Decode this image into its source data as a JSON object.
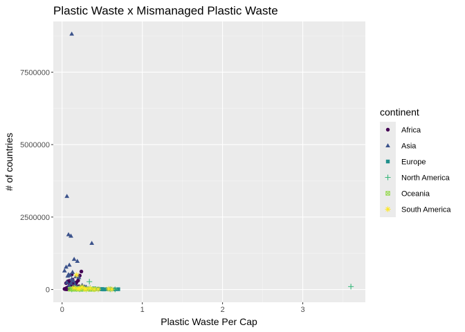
{
  "chart_data": {
    "type": "scatter",
    "title": "Plastic Waste x Mismanaged Plastic Waste",
    "xlabel": "Plastic Waste Per Cap",
    "ylabel": "# of countries",
    "xlim": [
      -0.11,
      3.78
    ],
    "ylim": [
      -440000,
      9250000
    ],
    "x_ticks": [
      0,
      1,
      2,
      3
    ],
    "x_tick_labels": [
      "0",
      "1",
      "2",
      "3"
    ],
    "y_ticks": [
      0,
      2500000,
      5000000,
      7500000
    ],
    "y_tick_labels": [
      "0",
      "2500000",
      "5000000",
      "7500000"
    ],
    "grid": true,
    "legend": {
      "title": "continent",
      "placement": "right"
    },
    "series": [
      {
        "name": "Africa",
        "color": "#440154",
        "shape": "circle",
        "points": [
          [
            0.03,
            20000
          ],
          [
            0.05,
            40000
          ],
          [
            0.06,
            60000
          ],
          [
            0.08,
            90000
          ],
          [
            0.1,
            120000
          ],
          [
            0.12,
            30000
          ],
          [
            0.14,
            160000
          ],
          [
            0.16,
            80000
          ],
          [
            0.18,
            250000
          ],
          [
            0.2,
            310000
          ],
          [
            0.22,
            480000
          ],
          [
            0.24,
            620000
          ],
          [
            0.26,
            50000
          ],
          [
            0.28,
            20000
          ],
          [
            0.12,
            520000
          ],
          [
            0.09,
            210000
          ],
          [
            0.07,
            280000
          ],
          [
            0.15,
            10000
          ],
          [
            0.19,
            70000
          ],
          [
            0.11,
            140000
          ],
          [
            0.04,
            10000
          ],
          [
            0.13,
            340000
          ],
          [
            0.17,
            190000
          ],
          [
            0.21,
            110000
          ],
          [
            0.08,
            15000
          ],
          [
            0.06,
            5000
          ],
          [
            0.1,
            45000
          ],
          [
            0.23,
            35000
          ],
          [
            0.25,
            8000
          ],
          [
            0.3,
            25000
          ],
          [
            0.35,
            12000
          ],
          [
            0.05,
            220000
          ],
          [
            0.14,
            260000
          ],
          [
            0.18,
            90000
          ],
          [
            0.09,
            300000
          ]
        ]
      },
      {
        "name": "Asia",
        "color": "#3b528b",
        "shape": "triangle",
        "points": [
          [
            0.12,
            8820000
          ],
          [
            0.06,
            3220000
          ],
          [
            0.08,
            1900000
          ],
          [
            0.11,
            1850000
          ],
          [
            0.37,
            1600000
          ],
          [
            0.15,
            1050000
          ],
          [
            0.19,
            980000
          ],
          [
            0.05,
            780000
          ],
          [
            0.09,
            850000
          ],
          [
            0.13,
            600000
          ],
          [
            0.1,
            500000
          ],
          [
            0.07,
            470000
          ],
          [
            0.17,
            450000
          ],
          [
            0.03,
            650000
          ],
          [
            0.21,
            420000
          ],
          [
            0.14,
            300000
          ],
          [
            0.11,
            220000
          ],
          [
            0.16,
            180000
          ],
          [
            0.25,
            150000
          ],
          [
            0.3,
            90000
          ],
          [
            0.2,
            60000
          ],
          [
            0.09,
            130000
          ],
          [
            0.13,
            80000
          ],
          [
            0.06,
            250000
          ],
          [
            0.18,
            40000
          ],
          [
            0.22,
            30000
          ],
          [
            0.45,
            20000
          ],
          [
            0.66,
            15000
          ],
          [
            0.28,
            100000
          ],
          [
            0.33,
            50000
          ],
          [
            0.12,
            360000
          ],
          [
            0.08,
            520000
          ]
        ]
      },
      {
        "name": "Europe",
        "color": "#21908c",
        "shape": "square",
        "points": [
          [
            0.15,
            20000
          ],
          [
            0.2,
            50000
          ],
          [
            0.25,
            30000
          ],
          [
            0.3,
            10000
          ],
          [
            0.35,
            15000
          ],
          [
            0.4,
            40000
          ],
          [
            0.45,
            25000
          ],
          [
            0.5,
            18000
          ],
          [
            0.55,
            8000
          ],
          [
            0.6,
            12000
          ],
          [
            0.65,
            5000
          ],
          [
            0.7,
            10000
          ],
          [
            0.18,
            60000
          ],
          [
            0.22,
            70000
          ],
          [
            0.28,
            35000
          ],
          [
            0.33,
            22000
          ],
          [
            0.38,
            9000
          ],
          [
            0.42,
            14000
          ],
          [
            0.48,
            6000
          ],
          [
            0.52,
            3000
          ],
          [
            0.26,
            45000
          ],
          [
            0.31,
            28000
          ],
          [
            0.36,
            16000
          ],
          [
            0.24,
            85000
          ],
          [
            0.29,
            32000
          ],
          [
            0.12,
            15000
          ]
        ]
      },
      {
        "name": "North America",
        "color": "#35b779",
        "shape": "plus",
        "points": [
          [
            3.6,
            100000
          ],
          [
            0.34,
            270000
          ],
          [
            0.18,
            20000
          ],
          [
            0.22,
            10000
          ],
          [
            0.28,
            30000
          ],
          [
            0.3,
            5000
          ],
          [
            0.25,
            15000
          ],
          [
            0.6,
            8000
          ],
          [
            0.66,
            3000
          ],
          [
            0.4,
            12000
          ],
          [
            0.16,
            40000
          ],
          [
            0.12,
            6000
          ],
          [
            0.2,
            25000
          ],
          [
            0.45,
            9000
          ],
          [
            0.35,
            50000
          ]
        ]
      },
      {
        "name": "Oceania",
        "color": "#8fd744",
        "shape": "boxcross",
        "points": [
          [
            0.1,
            10000
          ],
          [
            0.15,
            5000
          ],
          [
            0.2,
            20000
          ],
          [
            0.25,
            8000
          ],
          [
            0.3,
            15000
          ],
          [
            0.35,
            3000
          ],
          [
            0.4,
            6000
          ],
          [
            0.12,
            25000
          ],
          [
            0.18,
            12000
          ],
          [
            0.22,
            9000
          ]
        ]
      },
      {
        "name": "South America",
        "color": "#fde725",
        "shape": "star",
        "points": [
          [
            0.18,
            500000
          ],
          [
            0.15,
            60000
          ],
          [
            0.2,
            30000
          ],
          [
            0.28,
            20000
          ],
          [
            0.35,
            40000
          ],
          [
            0.58,
            20000
          ],
          [
            0.62,
            10000
          ],
          [
            0.25,
            90000
          ],
          [
            0.3,
            15000
          ],
          [
            0.22,
            45000
          ],
          [
            0.4,
            8000
          ],
          [
            0.45,
            12000
          ]
        ]
      }
    ]
  }
}
